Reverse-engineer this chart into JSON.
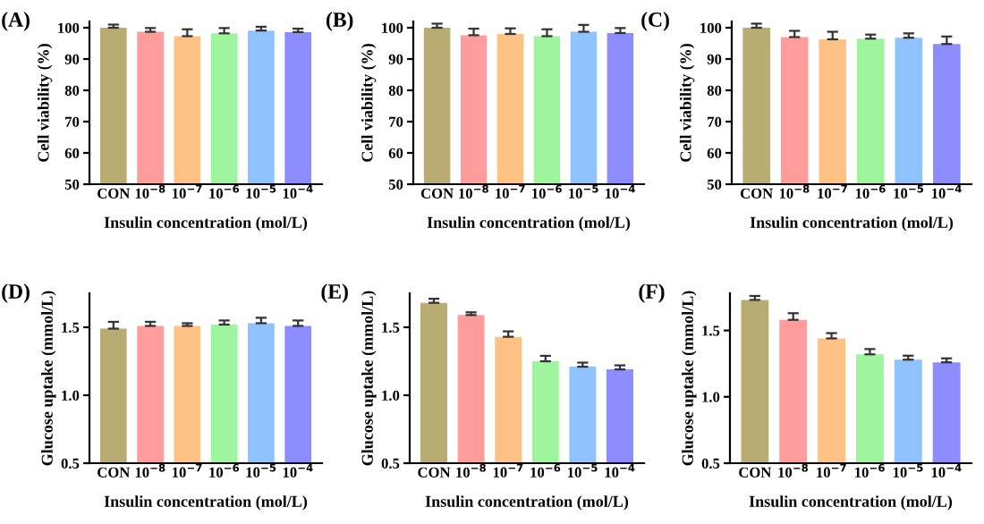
{
  "chart_data": [
    {
      "type": "bar",
      "title": "(A)",
      "xlabel": "Insulin concentration (mol/L)",
      "ylabel": "Cell viability (%)",
      "categories": [
        "CON",
        "10$^{−8}$",
        "10$^{−7}$",
        "10$^{−6}$",
        "10$^{−5}$",
        "10$^{−4}$"
      ],
      "values": [
        100,
        98.7,
        97.3,
        98.2,
        99.1,
        98.6
      ],
      "errors": [
        [
          100,
          101.0
        ],
        [
          98.7,
          99.9
        ],
        [
          97.3,
          99.5
        ],
        [
          98.2,
          99.9
        ],
        [
          99.1,
          100.3
        ],
        [
          98.6,
          99.7
        ]
      ],
      "colors": [
        "#b8ac72",
        "#ff9c9c",
        "#ffc285",
        "#9ef59e",
        "#8fc2ff",
        "#8c8cff"
      ],
      "ylim": [
        50,
        102
      ],
      "yticks": [
        50,
        60,
        70,
        80,
        90,
        100
      ]
    },
    {
      "type": "bar",
      "title": "(B)",
      "xlabel": "Insulin concentration (mol/L)",
      "ylabel": "Cell viability (%)",
      "categories": [
        "CON",
        "10$^{−8}$",
        "10$^{−7}$",
        "10$^{−6}$",
        "10$^{−5}$",
        "10$^{−4}$"
      ],
      "values": [
        100,
        97.6,
        98.0,
        97.3,
        98.7,
        98.3
      ],
      "errors": [
        [
          100,
          101.3
        ],
        [
          97.6,
          99.7
        ],
        [
          98.0,
          99.8
        ],
        [
          97.3,
          99.5
        ],
        [
          98.7,
          100.9
        ],
        [
          98.3,
          99.9
        ]
      ],
      "colors": [
        "#b8ac72",
        "#ff9c9c",
        "#ffc285",
        "#9ef59e",
        "#8fc2ff",
        "#8c8cff"
      ],
      "ylim": [
        50,
        102
      ],
      "yticks": [
        50,
        60,
        70,
        80,
        90,
        100
      ]
    },
    {
      "type": "bar",
      "title": "(C)",
      "xlabel": "Insulin concentration (mol/L)",
      "ylabel": "Cell viability (%)",
      "categories": [
        "CON",
        "10$^{−8}$",
        "10$^{−7}$",
        "10$^{−6}$",
        "10$^{−5}$",
        "10$^{−4}$"
      ],
      "values": [
        100,
        97.0,
        96.3,
        96.5,
        96.8,
        94.8
      ],
      "errors": [
        [
          100,
          101.3
        ],
        [
          97.0,
          99.0
        ],
        [
          96.3,
          98.7
        ],
        [
          96.5,
          97.8
        ],
        [
          96.8,
          98.2
        ],
        [
          94.8,
          97.2
        ]
      ],
      "colors": [
        "#b8ac72",
        "#ff9c9c",
        "#ffc285",
        "#9ef59e",
        "#8fc2ff",
        "#8c8cff"
      ],
      "ylim": [
        50,
        102
      ],
      "yticks": [
        50,
        60,
        70,
        80,
        90,
        100
      ]
    },
    {
      "type": "bar",
      "title": "(D)",
      "xlabel": "Insulin concentration (mol/L)",
      "ylabel": "Glucose uptake (mmol/L)",
      "categories": [
        "CON",
        "10$^{−8}$",
        "10$^{−7}$",
        "10$^{−6}$",
        "10$^{−5}$",
        "10$^{−4}$"
      ],
      "values": [
        1.49,
        1.51,
        1.51,
        1.52,
        1.53,
        1.51
      ],
      "errors": [
        [
          1.49,
          1.54
        ],
        [
          1.51,
          1.54
        ],
        [
          1.51,
          1.53
        ],
        [
          1.52,
          1.55
        ],
        [
          1.53,
          1.57
        ],
        [
          1.51,
          1.55
        ]
      ],
      "colors": [
        "#b8ac72",
        "#ff9c9c",
        "#ffc285",
        "#9ef59e",
        "#8fc2ff",
        "#8c8cff"
      ],
      "ylim": [
        0.5,
        1.75
      ],
      "yticks": [
        {
          "value": 0.5,
          "label": "0.5"
        },
        {
          "value": 1.0,
          "label": "1.0"
        },
        {
          "value": 1.5,
          "label": "1.5"
        }
      ]
    },
    {
      "type": "bar",
      "title": "(E)",
      "xlabel": "Insulin concentration (mol/L)",
      "ylabel": "Glucose uptake (mmol/L)",
      "categories": [
        "CON",
        "10$^{−8}$",
        "10$^{−7}$",
        "10$^{−6}$",
        "10$^{−5}$",
        "10$^{−4}$"
      ],
      "values": [
        1.68,
        1.59,
        1.43,
        1.25,
        1.21,
        1.19
      ],
      "errors": [
        [
          1.68,
          1.71
        ],
        [
          1.59,
          1.61
        ],
        [
          1.43,
          1.47
        ],
        [
          1.25,
          1.29
        ],
        [
          1.21,
          1.24
        ],
        [
          1.19,
          1.22
        ]
      ],
      "colors": [
        "#b8ac72",
        "#ff9c9c",
        "#ffc285",
        "#9ef59e",
        "#8fc2ff",
        "#8c8cff"
      ],
      "ylim": [
        0.5,
        1.75
      ],
      "yticks": [
        {
          "value": 0.5,
          "label": "0.5"
        },
        {
          "value": 1.0,
          "label": "1.0"
        },
        {
          "value": 1.5,
          "label": "1.5"
        }
      ]
    },
    {
      "type": "bar",
      "title": "(F)",
      "xlabel": "Insulin concentration (mol/L)",
      "ylabel": "Glucose uptake (mmol/L)",
      "categories": [
        "CON",
        "10$^{−8}$",
        "10$^{−7}$",
        "10$^{−6}$",
        "10$^{−5}$",
        "10$^{−4}$"
      ],
      "values": [
        1.73,
        1.58,
        1.44,
        1.32,
        1.28,
        1.26
      ],
      "errors": [
        [
          1.73,
          1.76
        ],
        [
          1.58,
          1.63
        ],
        [
          1.44,
          1.48
        ],
        [
          1.32,
          1.36
        ],
        [
          1.28,
          1.31
        ],
        [
          1.26,
          1.29
        ]
      ],
      "colors": [
        "#b8ac72",
        "#ff9c9c",
        "#ffc285",
        "#9ef59e",
        "#8fc2ff",
        "#8c8cff"
      ],
      "ylim": [
        0.5,
        1.78
      ],
      "yticks": [
        {
          "value": 0.5,
          "label": "0.5"
        },
        {
          "value": 1.0,
          "label": "1.0"
        },
        {
          "value": 1.5,
          "label": "1.5"
        }
      ]
    }
  ]
}
